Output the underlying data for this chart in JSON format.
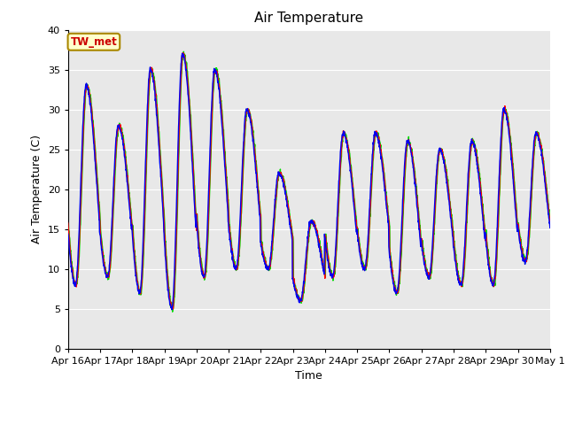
{
  "title": "Air Temperature",
  "xlabel": "Time",
  "ylabel": "Air Temperature (C)",
  "annotation": "TW_met",
  "ylim": [
    0,
    40
  ],
  "yticks": [
    0,
    5,
    10,
    15,
    20,
    25,
    30,
    35,
    40
  ],
  "xtick_labels": [
    "Apr 16",
    "Apr 17",
    "Apr 18",
    "Apr 19",
    "Apr 20",
    "Apr 21",
    "Apr 22",
    "Apr 23",
    "Apr 24",
    "Apr 25",
    "Apr 26",
    "Apr 27",
    "Apr 28",
    "Apr 29",
    "Apr 30",
    "May 1"
  ],
  "panel_color": "#ff0000",
  "air_color": "#0000ee",
  "am25_color": "#00dd00",
  "axes_bg_color": "#e8e8e8",
  "grid_color": "#ffffff",
  "line_width": 1.0,
  "day_peaks": [
    33,
    28,
    35,
    37,
    35,
    30,
    22,
    16,
    27,
    27,
    26,
    25,
    26,
    30,
    27,
    27
  ],
  "day_mins": [
    8,
    9,
    7,
    5,
    9,
    10,
    10,
    6,
    9,
    10,
    7,
    9,
    8,
    8,
    11,
    11
  ],
  "n_days": 15,
  "pts_per_day": 144
}
